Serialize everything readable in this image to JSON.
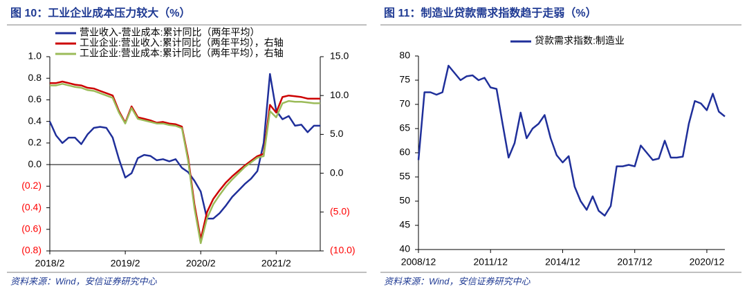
{
  "chart_data": [
    {
      "type": "line",
      "title": "图 10：工业企业成本压力较大（%）",
      "source": "资料来源：Wind，安信证券研究中心",
      "categories": [
        "2018/2",
        null,
        null,
        null,
        null,
        null,
        null,
        null,
        null,
        null,
        null,
        null,
        "2019/2",
        null,
        null,
        null,
        null,
        null,
        null,
        null,
        null,
        null,
        null,
        null,
        "2020/2",
        null,
        null,
        null,
        null,
        null,
        null,
        null,
        null,
        null,
        null,
        null,
        "2021/2",
        null,
        null,
        null,
        null,
        null,
        null,
        null
      ],
      "series": [
        {
          "name": "营业收入-营业成本:累计同比（两年平均）",
          "color": "#1f2f9a",
          "axis": "y",
          "values": [
            0.4,
            0.27,
            0.2,
            0.25,
            0.25,
            0.19,
            0.28,
            0.34,
            0.35,
            0.34,
            0.25,
            0.05,
            -0.12,
            -0.08,
            0.06,
            0.09,
            0.08,
            0.04,
            0.05,
            0.03,
            0.05,
            -0.03,
            -0.07,
            -0.15,
            -0.25,
            -0.5,
            -0.5,
            -0.45,
            -0.38,
            -0.3,
            -0.24,
            -0.18,
            -0.13,
            -0.06,
            0.2,
            0.84,
            0.5,
            0.42,
            0.45,
            0.36,
            0.37,
            0.3,
            0.36,
            0.36
          ]
        },
        {
          "name": "工业企业:营业收入:累计同比（两年平均），右轴",
          "color": "#cc0000",
          "axis": "y2",
          "values": [
            11.6,
            11.6,
            11.8,
            11.6,
            11.4,
            11.3,
            11.0,
            10.9,
            10.6,
            10.3,
            10.0,
            8.0,
            6.5,
            8.6,
            7.2,
            7.0,
            6.8,
            6.5,
            6.6,
            6.4,
            6.3,
            6.0,
            2.0,
            -4.0,
            -8.5,
            -5.0,
            -3.3,
            -2.2,
            -1.2,
            -0.4,
            0.3,
            1.0,
            1.6,
            2.2,
            2.5,
            8.8,
            7.8,
            9.8,
            10.0,
            9.9,
            9.8,
            9.6,
            9.6,
            9.6
          ]
        },
        {
          "name": "工业企业:营业成本:累计同比（两年平均），右轴",
          "color": "#9bbb59",
          "axis": "y2",
          "values": [
            11.3,
            11.3,
            11.5,
            11.3,
            11.1,
            11.0,
            10.7,
            10.6,
            10.3,
            10.0,
            9.7,
            7.8,
            6.4,
            8.4,
            7.0,
            6.8,
            6.6,
            6.4,
            6.4,
            6.2,
            6.1,
            5.8,
            1.6,
            -4.5,
            -9.0,
            -5.8,
            -4.0,
            -2.8,
            -1.7,
            -0.8,
            0.0,
            0.8,
            1.4,
            2.0,
            2.2,
            8.0,
            7.2,
            9.0,
            9.3,
            9.2,
            9.2,
            9.1,
            9.0,
            9.0
          ]
        }
      ],
      "ylim": [
        -0.8,
        1.0
      ],
      "yticks": [
        {
          "value": 1.0,
          "label": "1.0"
        },
        {
          "value": 0.8,
          "label": "0.8"
        },
        {
          "value": 0.6,
          "label": "0.6"
        },
        {
          "value": 0.4,
          "label": "0.4"
        },
        {
          "value": 0.2,
          "label": "0.2"
        },
        {
          "value": 0.0,
          "label": "0.0"
        },
        {
          "value": -0.2,
          "label": "(0.2)"
        },
        {
          "value": -0.4,
          "label": "(0.4)"
        },
        {
          "value": -0.6,
          "label": "(0.6)"
        },
        {
          "value": -0.8,
          "label": "(0.8)"
        }
      ],
      "y2lim": [
        -10,
        15
      ],
      "y2ticks": [
        {
          "value": 15,
          "label": "15.0"
        },
        {
          "value": 10,
          "label": "10.0"
        },
        {
          "value": 5,
          "label": "5.0"
        },
        {
          "value": 0,
          "label": "0.0"
        },
        {
          "value": -5,
          "label": "(5.0)"
        },
        {
          "value": -10,
          "label": "(10.0)"
        }
      ],
      "negative_tick_color": "#ff0000",
      "zero_line": true,
      "legend": "top-left"
    },
    {
      "type": "line",
      "title": "图 11：制造业贷款需求指数趋于走弱（%）",
      "source": "资料来源：Wind，安信证券研究中心",
      "categories": [
        "2008/12",
        null,
        null,
        null,
        null,
        null,
        null,
        null,
        null,
        null,
        null,
        null,
        "2011/12",
        null,
        null,
        null,
        null,
        null,
        null,
        null,
        null,
        null,
        null,
        null,
        "2014/12",
        null,
        null,
        null,
        null,
        null,
        null,
        null,
        null,
        null,
        null,
        null,
        "2017/12",
        null,
        null,
        null,
        null,
        null,
        null,
        null,
        null,
        null,
        null,
        null,
        "2020/12",
        null,
        null,
        null
      ],
      "series": [
        {
          "name": "贷款需求指数:制造业",
          "color": "#1f2f9a",
          "axis": "y",
          "values": [
            58.5,
            72.5,
            72.5,
            72.0,
            72.5,
            78.0,
            76.5,
            75.0,
            75.8,
            76.0,
            75.0,
            75.5,
            73.5,
            73.2,
            66.0,
            59.0,
            62.0,
            68.3,
            63.0,
            65.0,
            66.0,
            67.8,
            63.0,
            59.5,
            58.0,
            59.3,
            53.0,
            50.0,
            48.2,
            51.0,
            48.0,
            47.0,
            49.0,
            57.2,
            57.2,
            57.5,
            57.2,
            61.5,
            60.0,
            58.5,
            58.8,
            62.5,
            59.0,
            59.0,
            59.2,
            66.0,
            70.7,
            70.2,
            68.8,
            72.2,
            68.5,
            67.5
          ]
        }
      ],
      "ylim": [
        40,
        80
      ],
      "yticks": [
        40,
        45,
        50,
        55,
        60,
        65,
        70,
        75,
        80
      ],
      "legend": "top"
    }
  ]
}
